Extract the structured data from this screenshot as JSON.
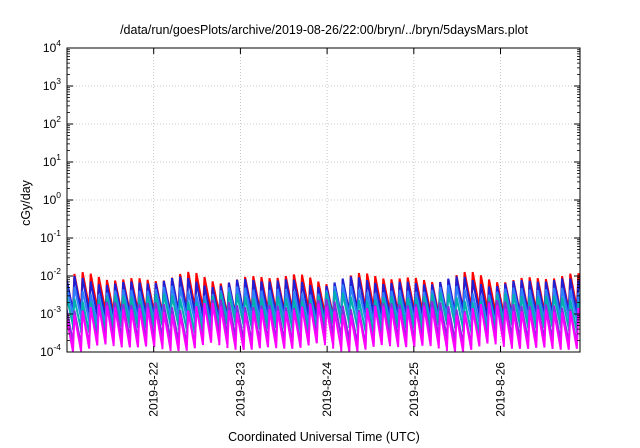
{
  "chart_data": {
    "type": "line",
    "title": "/data/run/goesPlots/archive/2019-08-26/22:00/bryn/../bryn/5daysMars.plot",
    "xlabel": "Coordinated Universal Time (UTC)",
    "ylabel": "cGy/day",
    "y_scale": "log",
    "ylim": [
      0.0001,
      10000
    ],
    "y_ticks": [
      {
        "value": 0.0001,
        "base": "10",
        "exp": "-4"
      },
      {
        "value": 0.001,
        "base": "10",
        "exp": "-3"
      },
      {
        "value": 0.01,
        "base": "10",
        "exp": "-2"
      },
      {
        "value": 0.1,
        "base": "10",
        "exp": "-1"
      },
      {
        "value": 1,
        "base": "10",
        "exp": "0"
      },
      {
        "value": 10,
        "base": "10",
        "exp": "1"
      },
      {
        "value": 100,
        "base": "10",
        "exp": "2"
      },
      {
        "value": 1000,
        "base": "10",
        "exp": "3"
      },
      {
        "value": 10000,
        "base": "10",
        "exp": "4"
      }
    ],
    "xlim": [
      "2019-08-21 00:00",
      "2019-08-26 22:00"
    ],
    "x_ticks": [
      "2019-8-22",
      "2019-8-23",
      "2019-8-24",
      "2019-8-25",
      "2019-8-26"
    ],
    "grid": true,
    "legend": "none",
    "sawtooth_period_hours": 2.25,
    "series": [
      {
        "color": "#ff0000",
        "peak_range": [
          0.006,
          0.013
        ],
        "trough_range": [
          0.0009,
          0.0015
        ]
      },
      {
        "color": "#1f1fd6",
        "peak_range": [
          0.005,
          0.01
        ],
        "trough_range": [
          0.0007,
          0.0012
        ]
      },
      {
        "color": "#2f80ff",
        "peak_range": [
          0.003,
          0.006
        ],
        "trough_range": [
          0.0005,
          0.0009
        ]
      },
      {
        "color": "#00b0b0",
        "peak_range": [
          0.002,
          0.004
        ],
        "trough_range": [
          0.0003,
          0.0006
        ]
      },
      {
        "color": "#8a2be2",
        "peak_range": [
          0.0012,
          0.0025
        ],
        "trough_range": [
          0.00015,
          0.0003
        ]
      },
      {
        "color": "#ff00ff",
        "peak_range": [
          0.0009,
          0.002
        ],
        "trough_range": [
          0.0001,
          0.00018
        ]
      }
    ]
  }
}
